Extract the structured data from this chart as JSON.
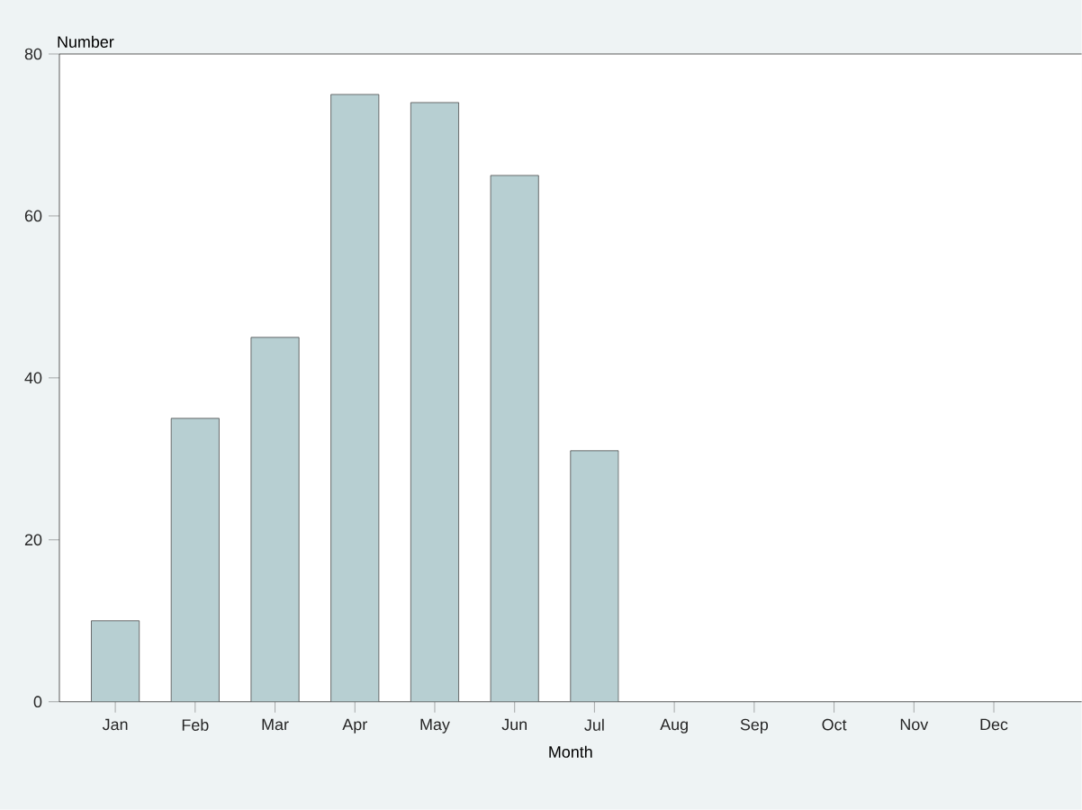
{
  "chart_data": {
    "type": "bar",
    "categories": [
      "Jan",
      "Feb",
      "Mar",
      "Apr",
      "May",
      "Jun",
      "Jul",
      "Aug",
      "Sep",
      "Oct",
      "Nov",
      "Dec"
    ],
    "values": [
      10,
      35,
      45,
      75,
      74,
      65,
      31,
      null,
      null,
      null,
      null,
      null
    ],
    "color": "#b7cfd2",
    "xlabel": "Month",
    "ylabel": "Number",
    "ylim": [
      0,
      80
    ],
    "yticks": [
      0,
      20,
      40,
      60,
      80
    ],
    "grid": false
  }
}
